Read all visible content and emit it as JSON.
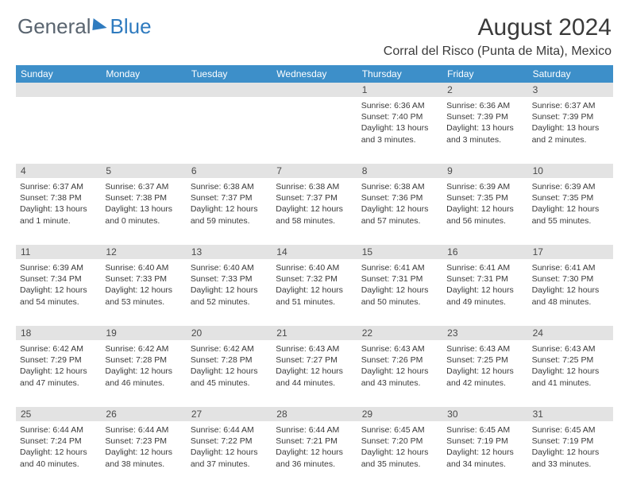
{
  "logo": {
    "general": "General",
    "blue": "Blue"
  },
  "title": "August 2024",
  "location": "Corral del Risco (Punta de Mita), Mexico",
  "colors": {
    "header_bg": "#3d8fc9",
    "daynum_bg": "#e3e3e3",
    "text": "#3a3a3a",
    "logo_blue": "#2f7bbf",
    "logo_gray": "#5a6570"
  },
  "daysOfWeek": [
    "Sunday",
    "Monday",
    "Tuesday",
    "Wednesday",
    "Thursday",
    "Friday",
    "Saturday"
  ],
  "weeks": [
    [
      {
        "num": "",
        "detail": ""
      },
      {
        "num": "",
        "detail": ""
      },
      {
        "num": "",
        "detail": ""
      },
      {
        "num": "",
        "detail": ""
      },
      {
        "num": "1",
        "detail": "Sunrise: 6:36 AM\nSunset: 7:40 PM\nDaylight: 13 hours and 3 minutes."
      },
      {
        "num": "2",
        "detail": "Sunrise: 6:36 AM\nSunset: 7:39 PM\nDaylight: 13 hours and 3 minutes."
      },
      {
        "num": "3",
        "detail": "Sunrise: 6:37 AM\nSunset: 7:39 PM\nDaylight: 13 hours and 2 minutes."
      }
    ],
    [
      {
        "num": "4",
        "detail": "Sunrise: 6:37 AM\nSunset: 7:38 PM\nDaylight: 13 hours and 1 minute."
      },
      {
        "num": "5",
        "detail": "Sunrise: 6:37 AM\nSunset: 7:38 PM\nDaylight: 13 hours and 0 minutes."
      },
      {
        "num": "6",
        "detail": "Sunrise: 6:38 AM\nSunset: 7:37 PM\nDaylight: 12 hours and 59 minutes."
      },
      {
        "num": "7",
        "detail": "Sunrise: 6:38 AM\nSunset: 7:37 PM\nDaylight: 12 hours and 58 minutes."
      },
      {
        "num": "8",
        "detail": "Sunrise: 6:38 AM\nSunset: 7:36 PM\nDaylight: 12 hours and 57 minutes."
      },
      {
        "num": "9",
        "detail": "Sunrise: 6:39 AM\nSunset: 7:35 PM\nDaylight: 12 hours and 56 minutes."
      },
      {
        "num": "10",
        "detail": "Sunrise: 6:39 AM\nSunset: 7:35 PM\nDaylight: 12 hours and 55 minutes."
      }
    ],
    [
      {
        "num": "11",
        "detail": "Sunrise: 6:39 AM\nSunset: 7:34 PM\nDaylight: 12 hours and 54 minutes."
      },
      {
        "num": "12",
        "detail": "Sunrise: 6:40 AM\nSunset: 7:33 PM\nDaylight: 12 hours and 53 minutes."
      },
      {
        "num": "13",
        "detail": "Sunrise: 6:40 AM\nSunset: 7:33 PM\nDaylight: 12 hours and 52 minutes."
      },
      {
        "num": "14",
        "detail": "Sunrise: 6:40 AM\nSunset: 7:32 PM\nDaylight: 12 hours and 51 minutes."
      },
      {
        "num": "15",
        "detail": "Sunrise: 6:41 AM\nSunset: 7:31 PM\nDaylight: 12 hours and 50 minutes."
      },
      {
        "num": "16",
        "detail": "Sunrise: 6:41 AM\nSunset: 7:31 PM\nDaylight: 12 hours and 49 minutes."
      },
      {
        "num": "17",
        "detail": "Sunrise: 6:41 AM\nSunset: 7:30 PM\nDaylight: 12 hours and 48 minutes."
      }
    ],
    [
      {
        "num": "18",
        "detail": "Sunrise: 6:42 AM\nSunset: 7:29 PM\nDaylight: 12 hours and 47 minutes."
      },
      {
        "num": "19",
        "detail": "Sunrise: 6:42 AM\nSunset: 7:28 PM\nDaylight: 12 hours and 46 minutes."
      },
      {
        "num": "20",
        "detail": "Sunrise: 6:42 AM\nSunset: 7:28 PM\nDaylight: 12 hours and 45 minutes."
      },
      {
        "num": "21",
        "detail": "Sunrise: 6:43 AM\nSunset: 7:27 PM\nDaylight: 12 hours and 44 minutes."
      },
      {
        "num": "22",
        "detail": "Sunrise: 6:43 AM\nSunset: 7:26 PM\nDaylight: 12 hours and 43 minutes."
      },
      {
        "num": "23",
        "detail": "Sunrise: 6:43 AM\nSunset: 7:25 PM\nDaylight: 12 hours and 42 minutes."
      },
      {
        "num": "24",
        "detail": "Sunrise: 6:43 AM\nSunset: 7:25 PM\nDaylight: 12 hours and 41 minutes."
      }
    ],
    [
      {
        "num": "25",
        "detail": "Sunrise: 6:44 AM\nSunset: 7:24 PM\nDaylight: 12 hours and 40 minutes."
      },
      {
        "num": "26",
        "detail": "Sunrise: 6:44 AM\nSunset: 7:23 PM\nDaylight: 12 hours and 38 minutes."
      },
      {
        "num": "27",
        "detail": "Sunrise: 6:44 AM\nSunset: 7:22 PM\nDaylight: 12 hours and 37 minutes."
      },
      {
        "num": "28",
        "detail": "Sunrise: 6:44 AM\nSunset: 7:21 PM\nDaylight: 12 hours and 36 minutes."
      },
      {
        "num": "29",
        "detail": "Sunrise: 6:45 AM\nSunset: 7:20 PM\nDaylight: 12 hours and 35 minutes."
      },
      {
        "num": "30",
        "detail": "Sunrise: 6:45 AM\nSunset: 7:19 PM\nDaylight: 12 hours and 34 minutes."
      },
      {
        "num": "31",
        "detail": "Sunrise: 6:45 AM\nSunset: 7:19 PM\nDaylight: 12 hours and 33 minutes."
      }
    ]
  ]
}
